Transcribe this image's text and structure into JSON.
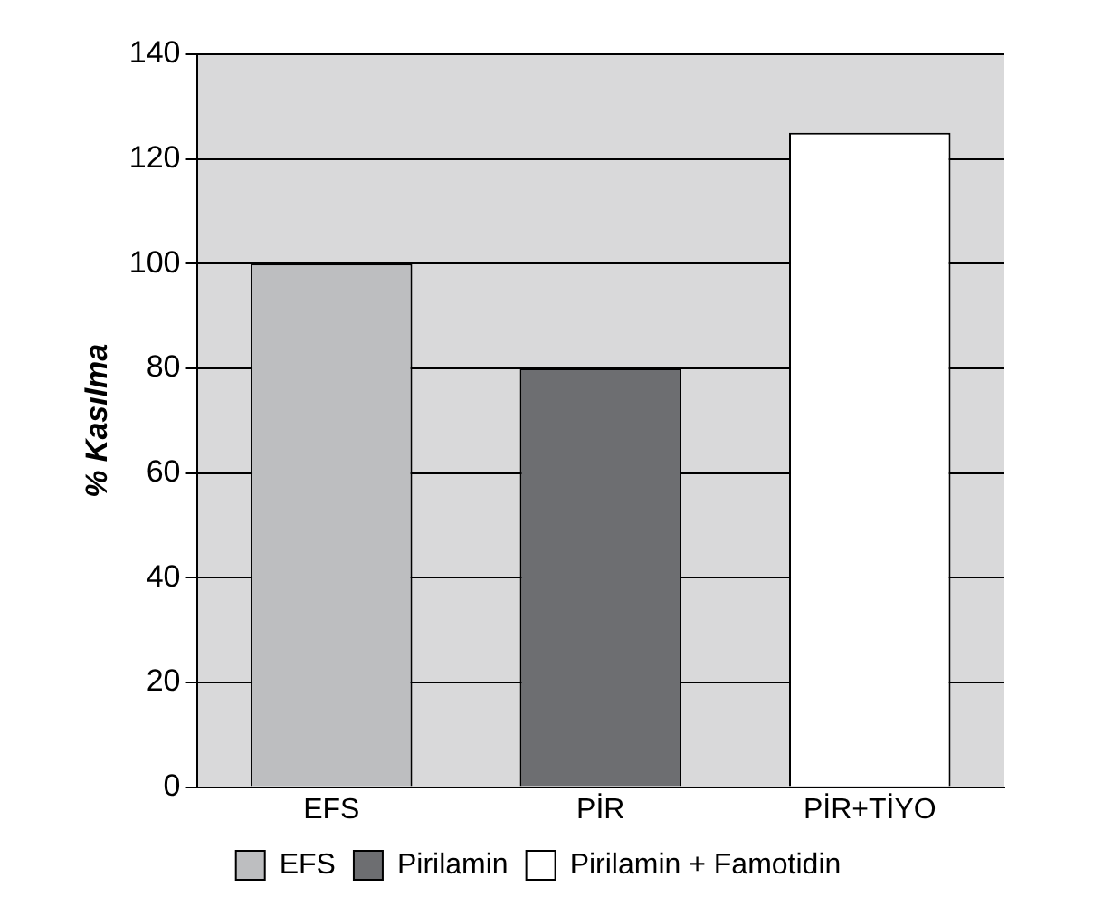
{
  "chart_data": {
    "type": "bar",
    "ylabel": "% Kasılma",
    "categories": [
      "EFS",
      "PİR",
      "PİR+TİYO"
    ],
    "series": [
      {
        "name": "EFS",
        "color": "#bdbec0",
        "values": [
          100,
          null,
          null
        ]
      },
      {
        "name": "Pirilamin",
        "color": "#6d6e71",
        "values": [
          null,
          80,
          null
        ]
      },
      {
        "name": "Pirilamin + Famotidin",
        "color": "#ffffff",
        "values": [
          null,
          null,
          125
        ]
      }
    ],
    "ylim": [
      0,
      140
    ],
    "yticks": [
      0,
      20,
      40,
      60,
      80,
      100,
      120,
      140
    ],
    "grid": "y",
    "legend": "bottom"
  }
}
